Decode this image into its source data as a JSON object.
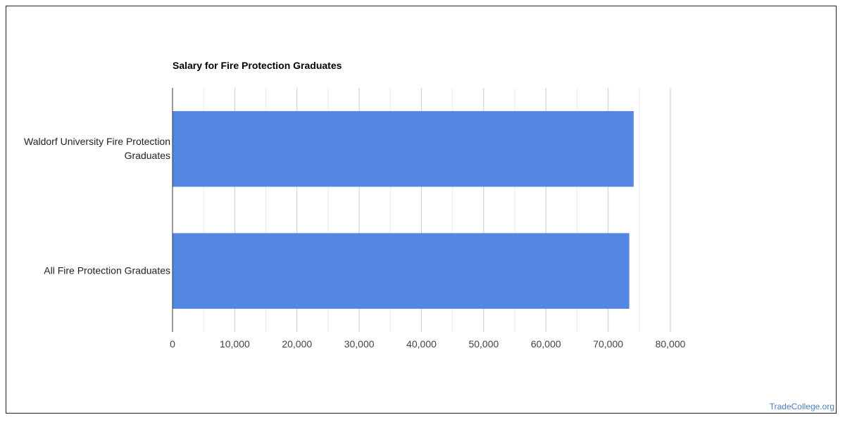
{
  "chart_data": {
    "type": "bar",
    "orientation": "horizontal",
    "title": "Salary for Fire Protection Graduates",
    "categories": [
      [
        "Waldorf University Fire Protection",
        "Graduates"
      ],
      [
        "All Fire Protection Graduates"
      ]
    ],
    "values": [
      74100,
      73400
    ],
    "xlim": [
      0,
      80000
    ],
    "xticks": [
      0,
      10000,
      20000,
      30000,
      40000,
      50000,
      60000,
      70000,
      80000
    ],
    "xtick_labels": [
      "0",
      "10,000",
      "20,000",
      "30,000",
      "40,000",
      "50,000",
      "60,000",
      "70,000",
      "80,000"
    ],
    "xlabel": "",
    "ylabel": "",
    "grid": true,
    "colors": {
      "bar": "#5486e3",
      "grid_major": "#cccccc",
      "grid_minor": "#ebebeb",
      "axis": "#333333",
      "text": "#222222"
    }
  },
  "watermark": "TradeCollege.org"
}
